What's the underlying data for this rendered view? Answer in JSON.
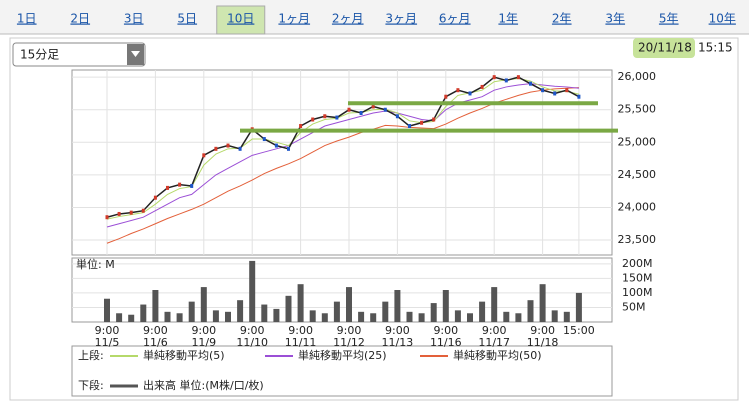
{
  "tabs": [
    "1日",
    "2日",
    "3日",
    "5日",
    "10日",
    "1ヶ月",
    "2ヶ月",
    "3ヶ月",
    "6ヶ月",
    "1年",
    "2年",
    "3年",
    "5年",
    "10年"
  ],
  "active_tab": "10日",
  "dropdown": "15分足",
  "date": "20/11/18",
  "time": "15:15",
  "legend": {
    "upper": "上段:",
    "lower": "下段:"
  },
  "chart_data": [
    {
      "type": "line",
      "categories": [
        "9:00",
        null,
        null,
        null,
        "9:00",
        null,
        null,
        null,
        "9:00",
        null,
        null,
        null,
        "9:00",
        null,
        null,
        null,
        "9:00",
        null,
        null,
        null,
        "9:00",
        null,
        null,
        null,
        "9:00",
        null,
        null,
        null,
        "9:00",
        null,
        null,
        null,
        "9:00",
        null,
        null,
        null,
        "9:00",
        null,
        null,
        "15:00"
      ],
      "dates": [
        "11/5",
        null,
        null,
        null,
        "11/6",
        null,
        null,
        null,
        "11/9",
        null,
        null,
        null,
        "11/10",
        null,
        null,
        null,
        "11/11",
        null,
        null,
        null,
        "11/12",
        null,
        null,
        null,
        "11/13",
        null,
        null,
        null,
        "11/16",
        null,
        null,
        null,
        "11/17",
        null,
        null,
        null,
        "11/18",
        null,
        null,
        null
      ],
      "values": [
        23850,
        23900,
        23920,
        23950,
        24150,
        24300,
        24350,
        24330,
        24800,
        24900,
        24950,
        24900,
        25200,
        25050,
        24950,
        24900,
        25250,
        25350,
        25400,
        25380,
        25500,
        25450,
        25550,
        25500,
        25400,
        25250,
        25300,
        25350,
        25700,
        25800,
        25750,
        25850,
        26000,
        25950,
        26000,
        25900,
        25800,
        25750,
        25800,
        25700
      ],
      "color": "#222222",
      "series": [
        {
          "name": "単純移動平均(5)",
          "color": "#b5d96a",
          "values": [
            23820,
            23860,
            23890,
            23920,
            24050,
            24200,
            24290,
            24320,
            24650,
            24820,
            24900,
            24910,
            25050,
            25050,
            25000,
            24950,
            25150,
            25280,
            25350,
            25370,
            25450,
            25460,
            25500,
            25510,
            25450,
            25330,
            25300,
            25320,
            25550,
            25720,
            25760,
            25800,
            25930,
            25960,
            25980,
            25940,
            25850,
            25790,
            25780,
            25740
          ]
        },
        {
          "name": "単純移動平均(25)",
          "color": "#9b4fd6",
          "values": [
            23700,
            23750,
            23800,
            23850,
            23950,
            24050,
            24150,
            24200,
            24350,
            24500,
            24600,
            24700,
            24800,
            24850,
            24900,
            24950,
            25050,
            25150,
            25250,
            25300,
            25350,
            25400,
            25450,
            25480,
            25450,
            25400,
            25350,
            25330,
            25500,
            25600,
            25650,
            25700,
            25800,
            25850,
            25880,
            25900,
            25880,
            25860,
            25850,
            25830
          ]
        },
        {
          "name": "単純移動平均(50)",
          "color": "#e3603a",
          "values": [
            23450,
            23520,
            23600,
            23670,
            23750,
            23830,
            23900,
            23970,
            24050,
            24150,
            24250,
            24330,
            24420,
            24520,
            24600,
            24670,
            24750,
            24850,
            24950,
            25020,
            25080,
            25150,
            25200,
            25260,
            25250,
            25230,
            25220,
            25210,
            25280,
            25370,
            25450,
            25520,
            25600,
            25660,
            25720,
            25770,
            25800,
            25820,
            25830,
            25840
          ]
        }
      ],
      "ylim": [
        23270,
        26110
      ],
      "yticks": [
        {
          "value": 23500,
          "label": "23,500"
        },
        {
          "value": 24000,
          "label": "24,000"
        },
        {
          "value": 24500,
          "label": "24,500"
        },
        {
          "value": 25000,
          "label": "25,000"
        },
        {
          "value": 25500,
          "label": "25,500"
        },
        {
          "value": 26000,
          "label": "26,000"
        }
      ],
      "hlines": [
        25600,
        25180
      ],
      "hline_color": "#7aa844",
      "grid": true
    },
    {
      "type": "bar",
      "unit_label": "単位: M",
      "series": [
        {
          "name": "出来高 単位:(M株/口/枚)",
          "color": "#555555",
          "values": [
            80,
            30,
            25,
            60,
            110,
            35,
            30,
            70,
            120,
            40,
            35,
            75,
            210,
            60,
            45,
            90,
            130,
            40,
            30,
            70,
            120,
            35,
            30,
            70,
            110,
            35,
            30,
            65,
            110,
            40,
            30,
            70,
            120,
            35,
            30,
            75,
            130,
            40,
            35,
            100
          ]
        }
      ],
      "ylim": [
        0,
        220
      ],
      "yticks": [
        {
          "value": 50,
          "label": "50M"
        },
        {
          "value": 100,
          "label": "100M"
        },
        {
          "value": 150,
          "label": "150M"
        },
        {
          "value": 200,
          "label": "200M"
        }
      ],
      "grid": true
    }
  ]
}
